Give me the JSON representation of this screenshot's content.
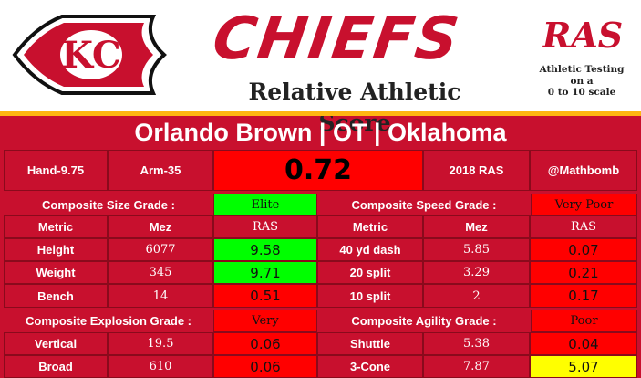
{
  "header": {
    "team_wordmark": "CHIEFS",
    "logo_text": "KC",
    "subtitle": "Relative Athletic Score",
    "ras_logo": "RAS",
    "ras_desc": [
      "Athletic Testing",
      "on a",
      "0 to 10 scale"
    ]
  },
  "player": {
    "name_line": "Orlando Brown | OT | Oklahoma",
    "hand": "Hand-9.75",
    "arm": "Arm-35",
    "score": "0.72",
    "year_ras": "2018 RAS",
    "handle": "@Mathbomb"
  },
  "grades": {
    "size_label": "Composite Size Grade :",
    "size_value": "Elite",
    "speed_label": "Composite Speed Grade :",
    "speed_value": "Very Poor",
    "explosion_label": "Composite Explosion Grade :",
    "explosion_value": "Very",
    "agility_label": "Composite Agility Grade :",
    "agility_value": "Poor"
  },
  "columns": {
    "metric": "Metric",
    "mez": "Mez",
    "ras": "RAS"
  },
  "size_rows": [
    {
      "metric": "Height",
      "mez": "6077",
      "ras": "9.58"
    },
    {
      "metric": "Weight",
      "mez": "345",
      "ras": "9.71"
    },
    {
      "metric": "Bench",
      "mez": "14",
      "ras": "0.51"
    }
  ],
  "speed_rows": [
    {
      "metric": "40 yd dash",
      "mez": "5.85",
      "ras": "0.07"
    },
    {
      "metric": "20 split",
      "mez": "3.29",
      "ras": "0.21"
    },
    {
      "metric": "10 split",
      "mez": "2",
      "ras": "0.17"
    }
  ],
  "explosion_rows": [
    {
      "metric": "Vertical",
      "mez": "19.5",
      "ras": "0.06"
    },
    {
      "metric": "Broad",
      "mez": "610",
      "ras": "0.06"
    }
  ],
  "agility_rows": [
    {
      "metric": "Shuttle",
      "mez": "5.38",
      "ras": "0.04"
    },
    {
      "metric": "3-Cone",
      "mez": "7.87",
      "ras": "5.07"
    }
  ],
  "colors": {
    "chiefs_red": "#c8102e",
    "chiefs_gold": "#ffb612",
    "good": "#00ff00",
    "average": "#ffff00",
    "poor": "#ff0000"
  }
}
